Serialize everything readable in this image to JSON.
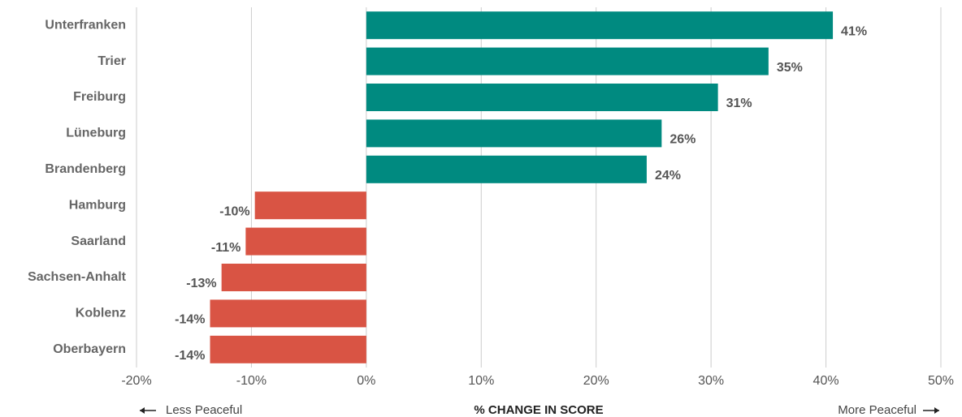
{
  "chart_data": {
    "type": "bar",
    "orientation": "horizontal",
    "categories": [
      "Unterfranken",
      "Trier",
      "Freiburg",
      "Lüneburg",
      "Brandenberg",
      "Hamburg",
      "Saarland",
      "Sachsen-Anhalt",
      "Koblenz",
      "Oberbayern"
    ],
    "values": [
      40.6,
      35.0,
      30.6,
      25.7,
      24.4,
      -9.7,
      -10.5,
      -12.6,
      -13.6,
      -13.6
    ],
    "value_labels": [
      "41%",
      "35%",
      "31%",
      "26%",
      "24%",
      "-10%",
      "-11%",
      "-13%",
      "-14%",
      "-14%"
    ],
    "positive_color": "#008a80",
    "negative_color": "#d95444",
    "xlim": [
      -20,
      50
    ],
    "xticks": [
      {
        "value": -20,
        "label": "-20%"
      },
      {
        "value": -10,
        "label": "-10%"
      },
      {
        "value": 0,
        "label": "0%"
      },
      {
        "value": 10,
        "label": "10%"
      },
      {
        "value": 20,
        "label": "20%"
      },
      {
        "value": 30,
        "label": "30%"
      },
      {
        "value": 40,
        "label": "40%"
      },
      {
        "value": 50,
        "label": "50%"
      }
    ],
    "grid": true,
    "x_label": "% CHANGE IN SCORE",
    "annotations": [
      "Less Peaceful",
      "More Peaceful"
    ]
  }
}
